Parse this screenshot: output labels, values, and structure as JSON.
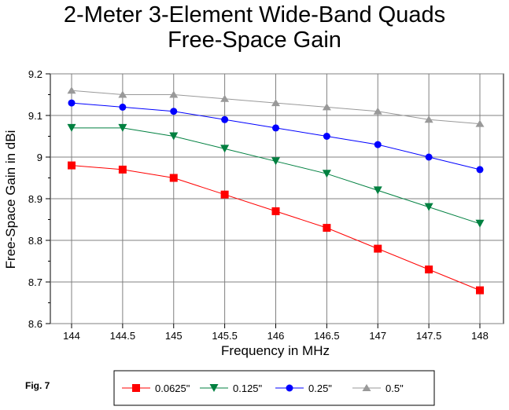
{
  "chart_data": {
    "type": "line",
    "title": "2-Meter 3-Element Wide-Band Quads",
    "subtitle": "Free-Space Gain",
    "xlabel": "Frequency in MHz",
    "ylabel": "Free-Space Gain in dBi",
    "x": [
      144,
      144.5,
      145,
      145.5,
      146,
      146.5,
      147,
      147.5,
      148
    ],
    "x_tick_labels": [
      "144",
      "144.5",
      "145",
      "145.5",
      "146",
      "146.5",
      "147",
      "147.5",
      "148"
    ],
    "xlim": [
      144,
      148
    ],
    "ylim": [
      8.6,
      9.2
    ],
    "y_ticks": [
      8.6,
      8.7,
      8.8,
      8.9,
      9.0,
      9.1,
      9.2
    ],
    "y_tick_labels": [
      "8.6",
      "8.7",
      "8.8",
      "8.9",
      "9",
      "9.1",
      "9.2"
    ],
    "grid": true,
    "legend_position": "bottom",
    "series": [
      {
        "name": "0.0625\"",
        "color": "#ff0000",
        "marker": "square",
        "values": [
          8.98,
          8.97,
          8.95,
          8.91,
          8.87,
          8.83,
          8.78,
          8.73,
          8.68
        ]
      },
      {
        "name": "0.125\"",
        "color": "#008040",
        "marker": "triangle-down",
        "values": [
          9.07,
          9.07,
          9.05,
          9.02,
          8.99,
          8.96,
          8.92,
          8.88,
          8.84
        ]
      },
      {
        "name": "0.25\"",
        "color": "#0000ff",
        "marker": "circle",
        "values": [
          9.13,
          9.12,
          9.11,
          9.09,
          9.07,
          9.05,
          9.03,
          9.0,
          8.97
        ]
      },
      {
        "name": "0.5\"",
        "color": "#999999",
        "marker": "triangle-up",
        "values": [
          9.16,
          9.15,
          9.15,
          9.14,
          9.13,
          9.12,
          9.11,
          9.09,
          9.08
        ]
      }
    ]
  },
  "figure_label": "Fig. 7"
}
